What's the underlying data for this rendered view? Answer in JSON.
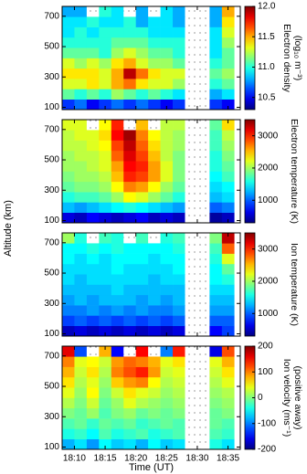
{
  "chart_data": [
    {
      "type": "heatmap",
      "colorbar_label": [
        "Electron density",
        "(log₁₀ m⁻³)"
      ],
      "colormap": "jet",
      "clim": [
        10.3,
        12.0
      ],
      "colorbar_ticks": [
        10.5,
        {
          "value": 11,
          "label": "11.0"
        },
        11.5,
        {
          "value": 12,
          "label": "12.0"
        }
      ],
      "x": [
        "18:09",
        "18:11",
        "18:13",
        "18:15",
        "18:17",
        "18:19",
        "18:21",
        "18:23",
        "18:25",
        "18:27",
        "18:29",
        "18:31",
        "18:33",
        "18:35"
      ],
      "y": [
        119,
        187,
        255,
        323,
        391,
        459,
        527,
        595,
        663,
        731
      ],
      "xlim": [
        "18:08",
        "18:37"
      ],
      "xticks": [
        "18:10",
        "18:15",
        "18:20",
        "18:25",
        "18:30",
        "18:35"
      ],
      "ylim": [
        85,
        765
      ],
      "yticks": [
        100,
        300,
        500,
        700
      ],
      "values": [
        [
          10.6,
          10.7,
          10.5,
          10.6,
          10.7,
          10.6,
          10.7,
          10.6,
          10.5,
          10.6,
          null,
          null,
          10.6,
          10.5
        ],
        [
          11.1,
          11.0,
          11.1,
          11.0,
          11.2,
          11.1,
          11.0,
          11.1,
          11.0,
          10.9,
          null,
          null,
          10.8,
          10.9
        ],
        [
          11.3,
          11.3,
          11.4,
          11.3,
          11.5,
          11.6,
          11.4,
          11.3,
          11.3,
          11.2,
          null,
          null,
          11.0,
          11.1
        ],
        [
          11.4,
          11.4,
          11.4,
          11.3,
          11.5,
          11.9,
          11.6,
          11.4,
          11.3,
          11.3,
          null,
          null,
          11.1,
          11.2
        ],
        [
          11.3,
          11.2,
          11.3,
          11.2,
          11.4,
          11.5,
          11.3,
          11.2,
          11.2,
          11.1,
          null,
          null,
          11.0,
          11.1
        ],
        [
          11.1,
          11.1,
          11.1,
          11.0,
          11.2,
          11.3,
          11.2,
          11.1,
          11.1,
          11.0,
          null,
          null,
          10.9,
          11.1
        ],
        [
          11.0,
          11.0,
          11.0,
          11.0,
          11.1,
          11.1,
          11.1,
          11.0,
          11.0,
          11.0,
          null,
          null,
          10.9,
          11.2
        ],
        [
          10.9,
          11.0,
          10.9,
          11.0,
          11.0,
          11.0,
          11.0,
          10.9,
          10.9,
          10.9,
          null,
          null,
          10.9,
          11.3
        ],
        [
          10.9,
          10.9,
          11.0,
          10.9,
          10.9,
          11.0,
          10.8,
          10.9,
          10.9,
          10.8,
          null,
          null,
          10.8,
          11.4
        ],
        [
          10.8,
          10.8,
          null,
          11.0,
          10.9,
          null,
          10.8,
          null,
          10.9,
          10.8,
          null,
          null,
          10.8,
          11.5
        ]
      ]
    },
    {
      "type": "heatmap",
      "colorbar_label": [
        "Electron temperature (K)"
      ],
      "colormap": "jet",
      "clim": [
        300,
        3500
      ],
      "colorbar_ticks": [
        1000,
        2000,
        3000
      ],
      "ylabel": "Altitude (km)",
      "x": [
        "18:09",
        "18:11",
        "18:13",
        "18:15",
        "18:17",
        "18:19",
        "18:21",
        "18:23",
        "18:25",
        "18:27",
        "18:29",
        "18:31",
        "18:33",
        "18:35"
      ],
      "y": [
        119,
        187,
        255,
        323,
        391,
        459,
        527,
        595,
        663,
        731
      ],
      "xlim": [
        "18:08",
        "18:37"
      ],
      "xticks": [
        "18:10",
        "18:15",
        "18:20",
        "18:25",
        "18:30",
        "18:35"
      ],
      "ylim": [
        85,
        765
      ],
      "yticks": [
        100,
        300,
        500,
        700
      ],
      "values": [
        [
          600,
          500,
          700,
          600,
          500,
          600,
          700,
          500,
          600,
          500,
          null,
          null,
          400,
          500
        ],
        [
          1300,
          1200,
          1300,
          1400,
          1500,
          1600,
          1500,
          1400,
          1300,
          1200,
          null,
          null,
          1000,
          1100
        ],
        [
          1600,
          1700,
          1700,
          1800,
          2000,
          2300,
          2200,
          2000,
          1800,
          1600,
          null,
          null,
          1300,
          1400
        ],
        [
          1800,
          1900,
          1900,
          2000,
          2300,
          2700,
          2600,
          2300,
          2000,
          1800,
          null,
          null,
          1400,
          1500
        ],
        [
          1900,
          2000,
          2000,
          2100,
          2500,
          3000,
          2900,
          2600,
          2200,
          1900,
          null,
          null,
          1500,
          1700
        ],
        [
          2000,
          2000,
          2100,
          2200,
          2600,
          3100,
          3000,
          2600,
          2200,
          1900,
          null,
          null,
          1600,
          1800
        ],
        [
          2000,
          2100,
          2100,
          2200,
          2800,
          3200,
          2900,
          2500,
          2100,
          1900,
          null,
          null,
          1600,
          1900
        ],
        [
          2100,
          2100,
          2200,
          2300,
          2900,
          3300,
          2800,
          2400,
          2100,
          2000,
          null,
          null,
          1700,
          2000
        ],
        [
          2100,
          2200,
          2200,
          2400,
          3100,
          3400,
          2700,
          2300,
          2100,
          2000,
          null,
          null,
          1700,
          2100
        ],
        [
          2200,
          2200,
          null,
          2300,
          3000,
          null,
          2500,
          null,
          2100,
          2100,
          null,
          null,
          1800,
          2400
        ]
      ]
    },
    {
      "type": "heatmap",
      "colorbar_label": [
        "Ion temperature (K)"
      ],
      "colormap": "jet",
      "clim": [
        300,
        3500
      ],
      "colorbar_ticks": [
        1000,
        2000,
        3000
      ],
      "x": [
        "18:09",
        "18:11",
        "18:13",
        "18:15",
        "18:17",
        "18:19",
        "18:21",
        "18:23",
        "18:25",
        "18:27",
        "18:29",
        "18:31",
        "18:33",
        "18:35"
      ],
      "y": [
        119,
        187,
        255,
        323,
        391,
        459,
        527,
        595,
        663,
        731
      ],
      "xlim": [
        "18:08",
        "18:37"
      ],
      "xticks": [
        "18:10",
        "18:15",
        "18:20",
        "18:25",
        "18:30",
        "18:35"
      ],
      "ylim": [
        85,
        765
      ],
      "yticks": [
        100,
        300,
        500,
        700
      ],
      "values": [
        [
          500,
          600,
          500,
          600,
          500,
          600,
          500,
          600,
          500,
          600,
          null,
          null,
          700,
          900
        ],
        [
          900,
          1000,
          900,
          1000,
          900,
          1000,
          900,
          1000,
          900,
          1000,
          null,
          null,
          1000,
          1000
        ],
        [
          1100,
          1100,
          1200,
          1100,
          1200,
          1100,
          1200,
          1100,
          1100,
          1200,
          null,
          null,
          1200,
          1200
        ],
        [
          1200,
          1300,
          1200,
          1300,
          1300,
          1300,
          1200,
          1300,
          1200,
          1300,
          null,
          null,
          1300,
          1300
        ],
        [
          1300,
          1300,
          1300,
          1300,
          1400,
          1300,
          1300,
          1300,
          1300,
          1300,
          null,
          null,
          1400,
          1400
        ],
        [
          1400,
          1300,
          1400,
          1400,
          1400,
          1400,
          1400,
          1300,
          1400,
          1400,
          null,
          null,
          1500,
          1600
        ],
        [
          1400,
          1400,
          1400,
          1400,
          1500,
          1400,
          1400,
          1400,
          1400,
          1500,
          null,
          null,
          1500,
          1800
        ],
        [
          1500,
          1400,
          1500,
          1400,
          1500,
          1500,
          1500,
          1400,
          1500,
          1500,
          null,
          null,
          1600,
          2200
        ],
        [
          1500,
          1500,
          1600,
          1500,
          1600,
          1500,
          1500,
          1500,
          1500,
          1600,
          null,
          null,
          1700,
          2800
        ],
        [
          2000,
          1600,
          null,
          1700,
          1600,
          null,
          1700,
          null,
          1600,
          1700,
          null,
          null,
          1900,
          3300
        ]
      ]
    },
    {
      "type": "heatmap",
      "colorbar_label": [
        "Ion velocity (ms⁻¹)",
        "(positive away)"
      ],
      "colormap": "jet",
      "clim": [
        -200,
        200
      ],
      "colorbar_ticks": [
        -200,
        -100,
        0,
        100,
        200
      ],
      "xlabel": "Time (UT)",
      "show_xtick_labels": true,
      "x": [
        "18:09",
        "18:11",
        "18:13",
        "18:15",
        "18:17",
        "18:19",
        "18:21",
        "18:23",
        "18:25",
        "18:27",
        "18:29",
        "18:31",
        "18:33",
        "18:35"
      ],
      "y": [
        119,
        187,
        255,
        323,
        391,
        459,
        527,
        595,
        663,
        731
      ],
      "xlim": [
        "18:08",
        "18:37"
      ],
      "xticks": [
        "18:10",
        "18:15",
        "18:20",
        "18:25",
        "18:30",
        "18:35"
      ],
      "ylim": [
        85,
        765
      ],
      "yticks": [
        100,
        300,
        500,
        700
      ],
      "values": [
        [
          -80,
          -60,
          -90,
          -50,
          -70,
          -60,
          -80,
          -50,
          -70,
          -60,
          null,
          null,
          -40,
          -60
        ],
        [
          -40,
          -30,
          -50,
          -20,
          -40,
          -30,
          -20,
          -40,
          -30,
          -20,
          null,
          null,
          -20,
          -30
        ],
        [
          -20,
          -10,
          -30,
          -10,
          -20,
          -10,
          -30,
          -20,
          -10,
          -20,
          null,
          null,
          -10,
          -20
        ],
        [
          0,
          -10,
          10,
          -20,
          0,
          10,
          -10,
          0,
          -10,
          0,
          null,
          null,
          -10,
          0
        ],
        [
          20,
          0,
          30,
          -10,
          10,
          40,
          20,
          10,
          0,
          10,
          null,
          null,
          0,
          10
        ],
        [
          40,
          10,
          50,
          0,
          30,
          60,
          40,
          30,
          10,
          20,
          null,
          null,
          10,
          20
        ],
        [
          60,
          20,
          40,
          10,
          70,
          90,
          100,
          50,
          20,
          30,
          null,
          null,
          20,
          40
        ],
        [
          80,
          30,
          60,
          20,
          100,
          120,
          140,
          90,
          30,
          40,
          null,
          null,
          30,
          60
        ],
        [
          100,
          40,
          50,
          30,
          90,
          110,
          100,
          80,
          40,
          60,
          null,
          null,
          40,
          80
        ],
        [
          160,
          -120,
          null,
          80,
          -150,
          null,
          150,
          null,
          -100,
          140,
          null,
          null,
          -160,
          120
        ]
      ]
    }
  ]
}
